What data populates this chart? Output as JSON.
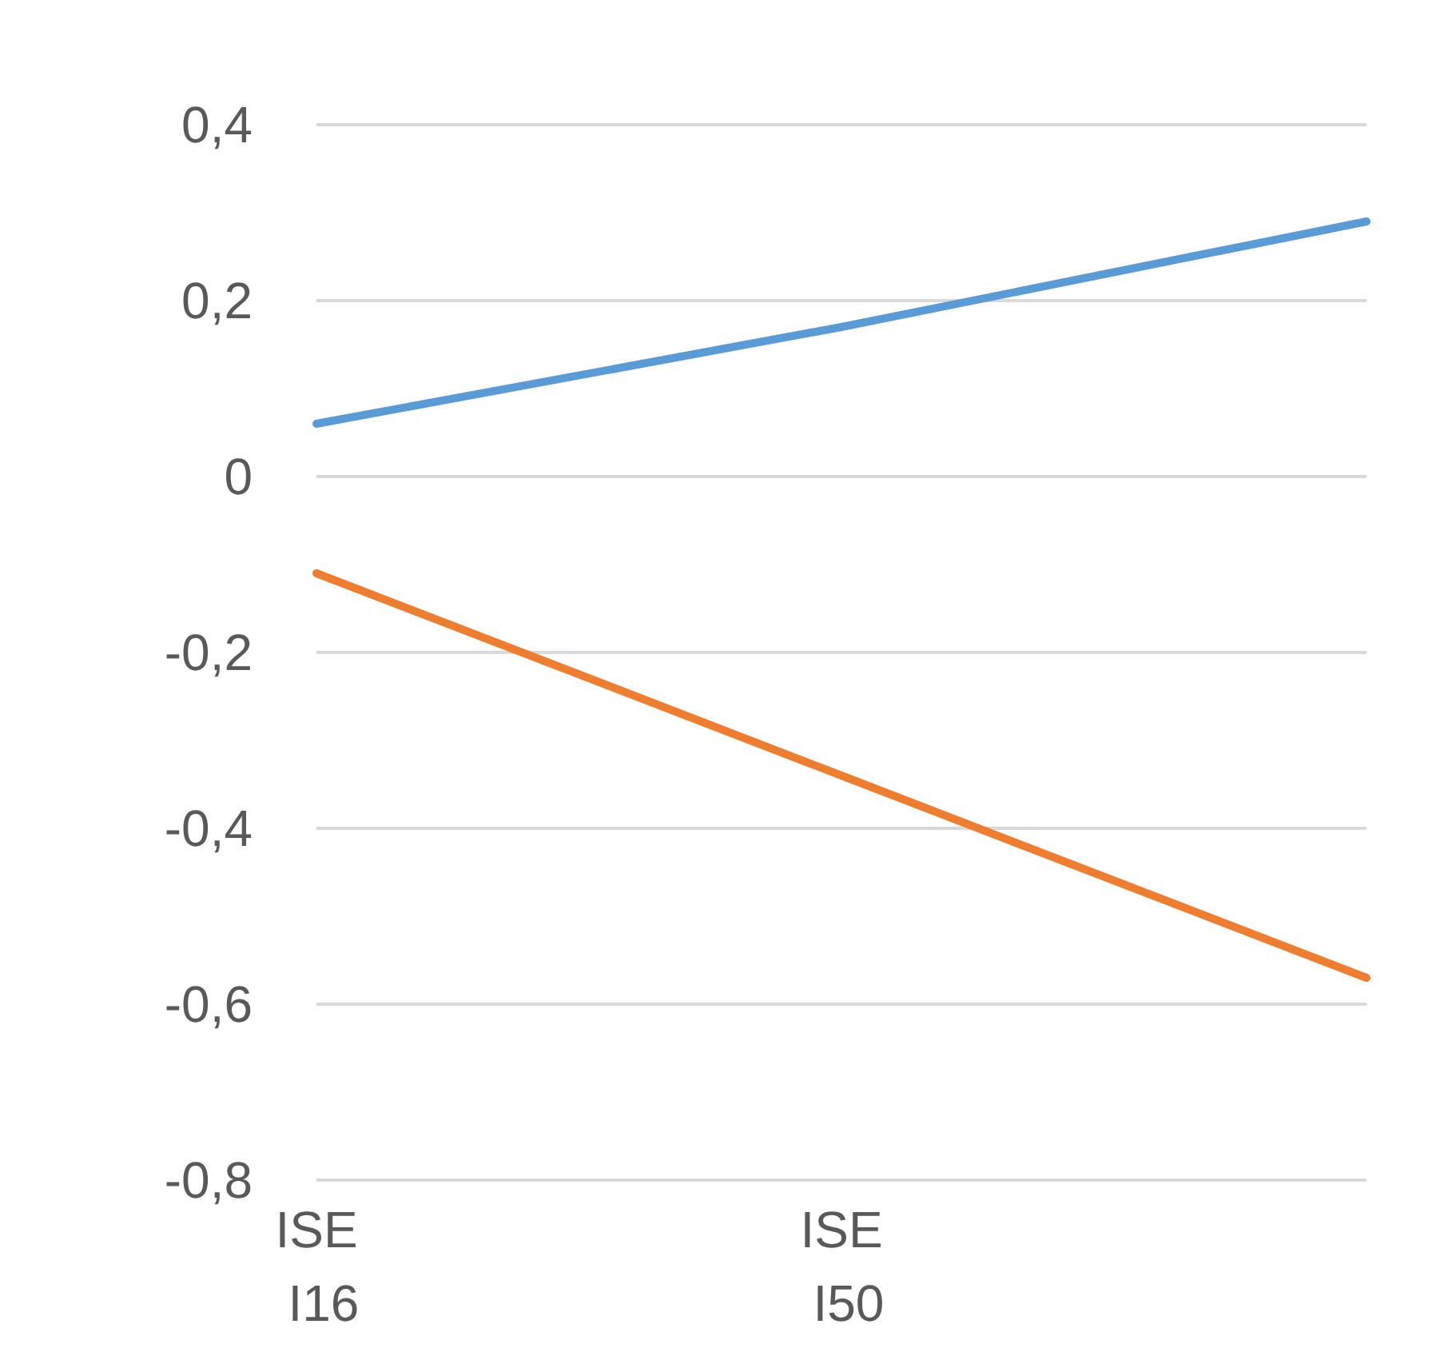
{
  "chart_data": {
    "type": "line",
    "categories": [
      "ISE I16",
      "ISE I50",
      null
    ],
    "series": [
      {
        "color": "#5b9bd5",
        "values": [
          0.06,
          0.17,
          0.29
        ]
      },
      {
        "color": "#ed7d31",
        "values": [
          -0.11,
          -0.34,
          -0.57
        ]
      }
    ],
    "ylim": [
      -0.8,
      0.4
    ],
    "yticks": [
      {
        "value": -0.8,
        "label": "-0,8"
      },
      {
        "value": -0.6,
        "label": "-0,6"
      },
      {
        "value": -0.4,
        "label": "-0,4"
      },
      {
        "value": -0.2,
        "label": "-0,2"
      },
      {
        "value": 0,
        "label": "0"
      },
      {
        "value": 0.2,
        "label": "0,2"
      },
      {
        "value": 0.4,
        "label": "0,4"
      }
    ],
    "grid": "y",
    "marker": "none",
    "line_style": "solid"
  }
}
